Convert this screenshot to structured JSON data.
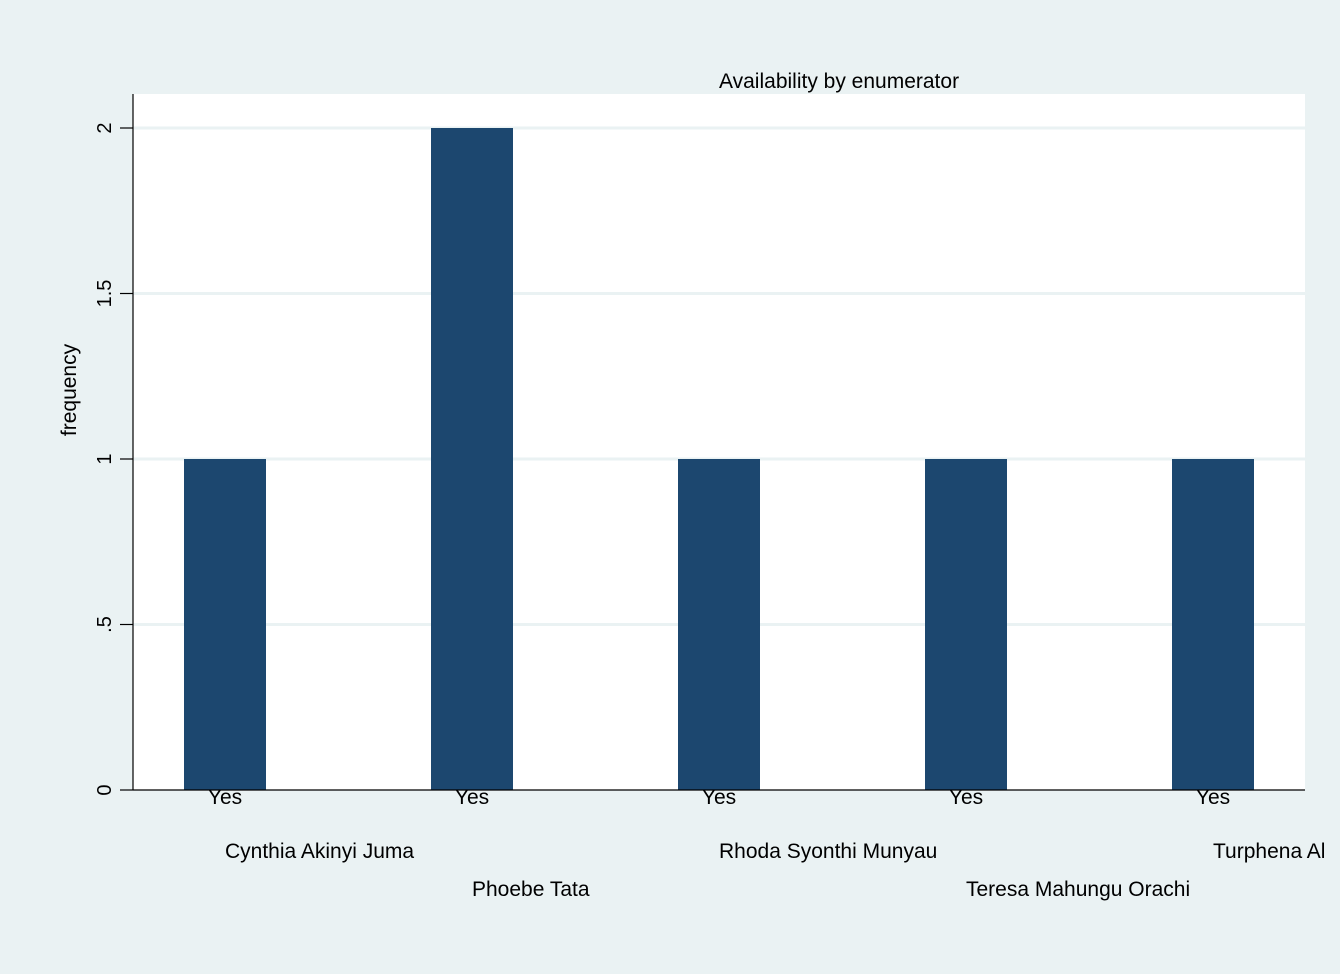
{
  "chart_data": {
    "type": "bar",
    "title": "Availability by enumerator",
    "ylabel": "frequency",
    "xlabel": "",
    "ylim": [
      0,
      2
    ],
    "yticks": [
      0,
      0.5,
      1,
      1.5,
      2
    ],
    "ytick_labels": [
      "0",
      ".5",
      "1",
      "1.5",
      "2"
    ],
    "grid": true,
    "categories": [
      "Cynthia Akinyi Juma",
      "Phoebe Tata",
      "Rhoda Syonthi Munyau",
      "Teresa Mahungu Orachi",
      "Turphena Al"
    ],
    "bar_labels": [
      "Yes",
      "Yes",
      "Yes",
      "Yes",
      "Yes"
    ],
    "values": [
      1,
      2,
      1,
      1,
      1
    ]
  },
  "colors": {
    "background": "#eaf2f3",
    "plot_area": "#ffffff",
    "bar": "#1c476f",
    "grid": "#eaf2f3",
    "axis": "#000000"
  }
}
